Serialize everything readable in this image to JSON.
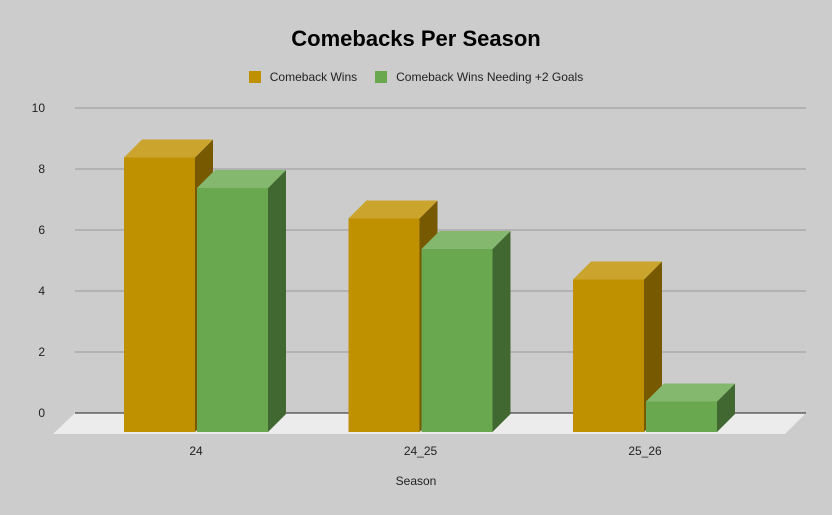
{
  "chart_data": {
    "type": "bar",
    "title": "Comebacks Per Season",
    "xlabel": "Season",
    "ylabel": "",
    "categories": [
      "24",
      "24_25",
      "25_26"
    ],
    "series": [
      {
        "name": "Comeback Wins",
        "values": [
          9,
          7,
          5
        ],
        "color": "#bf9000"
      },
      {
        "name": "Comeback Wins Needing +2 Goals",
        "values": [
          8,
          6,
          1
        ],
        "color": "#6aa84f"
      }
    ],
    "ylim": [
      0,
      10
    ],
    "yticks": [
      "0",
      "2",
      "4",
      "6",
      "8",
      "10"
    ],
    "grid": true,
    "legend": "top",
    "style": "3d"
  }
}
